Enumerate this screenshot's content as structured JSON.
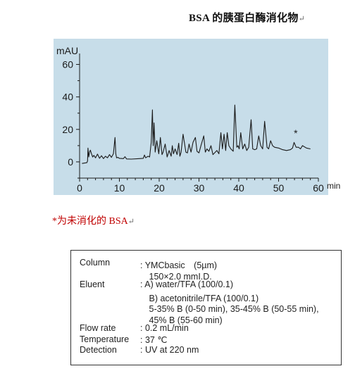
{
  "header": {
    "title": "BSA 的胰蛋白酶消化物",
    "mark": "↵"
  },
  "chart_data": {
    "type": "line",
    "title": "",
    "xlabel": "min",
    "ylabel": "mAU",
    "xlim": [
      0,
      60
    ],
    "ylim": [
      -10,
      65
    ],
    "xticks": [
      "0",
      "10",
      "20",
      "30",
      "40",
      "50",
      "60"
    ],
    "yticks": [
      "0",
      "20",
      "40",
      "60"
    ],
    "grid": false,
    "series": [
      {
        "color": "#1a1a1a",
        "x": [
          0.6,
          1.8,
          2.0,
          2.1,
          2.3,
          2.5,
          2.7,
          3.0,
          3.3,
          3.6,
          4.0,
          4.5,
          5.0,
          5.5,
          6.0,
          6.5,
          7.0,
          7.5,
          8.0,
          8.5,
          8.9,
          9.1,
          9.3,
          9.6,
          10.0,
          11.0,
          11.4,
          11.8,
          13.0,
          15.0,
          16.0,
          16.3,
          16.6,
          17.2,
          17.6,
          18.0,
          18.3,
          18.5,
          18.7,
          19.0,
          19.4,
          19.9,
          20.3,
          20.7,
          21.0,
          21.5,
          22.0,
          22.5,
          23.0,
          23.3,
          23.6,
          24.0,
          24.5,
          24.9,
          25.2,
          25.5,
          26.0,
          26.7,
          27.1,
          27.5,
          28.0,
          28.5,
          29.1,
          29.5,
          30.0,
          30.5,
          31.2,
          31.6,
          32.0,
          32.5,
          33.0,
          33.5,
          34.1,
          34.5,
          35.0,
          35.5,
          35.9,
          36.3,
          36.7,
          37.1,
          37.5,
          38.0,
          38.6,
          39.0,
          39.5,
          39.8,
          40.1,
          40.5,
          41.0,
          41.5,
          42.0,
          42.5,
          43.1,
          43.5,
          44.0,
          44.5,
          45.0,
          45.5,
          46.0,
          46.5,
          47.1,
          47.5,
          48.0,
          48.5,
          49.0,
          50.0,
          51.0,
          52.0,
          53.0,
          53.5,
          53.9,
          54.4,
          55.0,
          55.5,
          56.0,
          57.0,
          58.0
        ],
        "values": [
          -1.0,
          -0.5,
          0.5,
          8.5,
          3.0,
          6.0,
          7.2,
          5.0,
          3.0,
          4.0,
          2.5,
          4.8,
          2.2,
          3.8,
          2.0,
          3.5,
          2.5,
          4.5,
          2.8,
          5.0,
          15.0,
          5.0,
          2.5,
          2.8,
          2.2,
          2.0,
          3.2,
          1.8,
          1.7,
          2.0,
          2.2,
          4.2,
          2.5,
          3.5,
          3.0,
          12.0,
          32.0,
          10.0,
          24.0,
          6.0,
          13.0,
          5.0,
          15.0,
          4.5,
          6.0,
          11.0,
          3.0,
          7.0,
          3.5,
          10.0,
          5.0,
          8.0,
          4.5,
          11.5,
          3.5,
          6.0,
          17.0,
          6.0,
          5.5,
          11.0,
          6.0,
          12.0,
          15.0,
          6.5,
          5.5,
          10.0,
          16.0,
          6.0,
          8.0,
          6.5,
          10.0,
          4.5,
          6.0,
          7.0,
          5.0,
          18.0,
          8.0,
          17.0,
          7.0,
          18.0,
          10.0,
          8.0,
          6.5,
          35.0,
          9.0,
          10.0,
          8.0,
          18.0,
          8.0,
          11.0,
          7.0,
          9.0,
          26.0,
          8.0,
          7.5,
          8.0,
          16.0,
          10.0,
          8.0,
          25.0,
          9.0,
          8.0,
          13.0,
          10.0,
          9.0,
          8.5,
          7.5,
          7.0,
          7.5,
          8.5,
          12.0,
          9.0,
          9.0,
          8.0,
          10.0,
          8.5,
          8.0
        ]
      }
    ],
    "annotations": [
      {
        "text": "*",
        "x": 54.3,
        "y": 15.5
      }
    ]
  },
  "note": {
    "text": "*为未消化的 BSA",
    "mark": "↵"
  },
  "conditions": {
    "rows": [
      {
        "label": "Column",
        "value": ": YMCbasic　(5µm)"
      },
      {
        "label": "",
        "value": "　150×2.0 mmI.D."
      },
      {
        "label": "Eluent",
        "value": ": A)  water/TFA (100/0.1)"
      },
      {
        "label": "",
        "value": "　B)  acetonitrile/TFA (100/0.1)"
      },
      {
        "label": "",
        "value": "　5-35% B (0-50 min), 35-45% B (50-55 min),"
      },
      {
        "label": "",
        "value": "　45% B (55-60 min)"
      },
      {
        "label": "Flow rate",
        "value": ": 0.2 mL/min"
      },
      {
        "label": "Temperature",
        "value": ": 37 ℃"
      },
      {
        "label": "Detection",
        "value": ": UV at 220 nm"
      }
    ]
  }
}
